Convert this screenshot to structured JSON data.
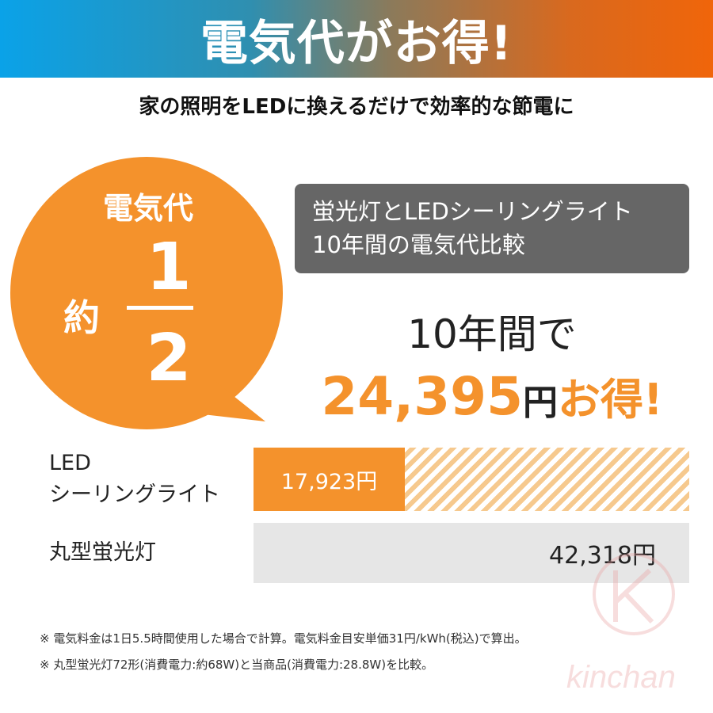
{
  "header": {
    "title": "電気代がお得!"
  },
  "subtitle": "家の照明をLEDに換えるだけで効率的な節電に",
  "bubble": {
    "label": "電気代",
    "prefix": "約",
    "numerator": "1",
    "denominator": "2",
    "color": "#f4922c"
  },
  "comparison_box": {
    "line1": "蛍光灯とLEDシーリングライト",
    "line2": "10年間の電気代比較"
  },
  "headline": {
    "period": "10年間で",
    "amount": "24,395",
    "yen": "円",
    "otoku": "お得!"
  },
  "bars": [
    {
      "label_line1": "LED",
      "label_line2": "シーリングライト",
      "value_text": "17,923円",
      "value": 17923,
      "color": "#f4922c"
    },
    {
      "label_line1": "丸型蛍光灯",
      "value_text": "42,318円",
      "value": 42318,
      "color": "#e6e6e6"
    }
  ],
  "notes": [
    "※ 電気料金は1日5.5時間使用した場合で計算。電気料金目安単価31円/kWh(税込)で算出。",
    "※ 丸型蛍光灯72形(消費電力:約68W)と当商品(消費電力:28.8W)を比較。"
  ],
  "watermark": "kinchan"
}
